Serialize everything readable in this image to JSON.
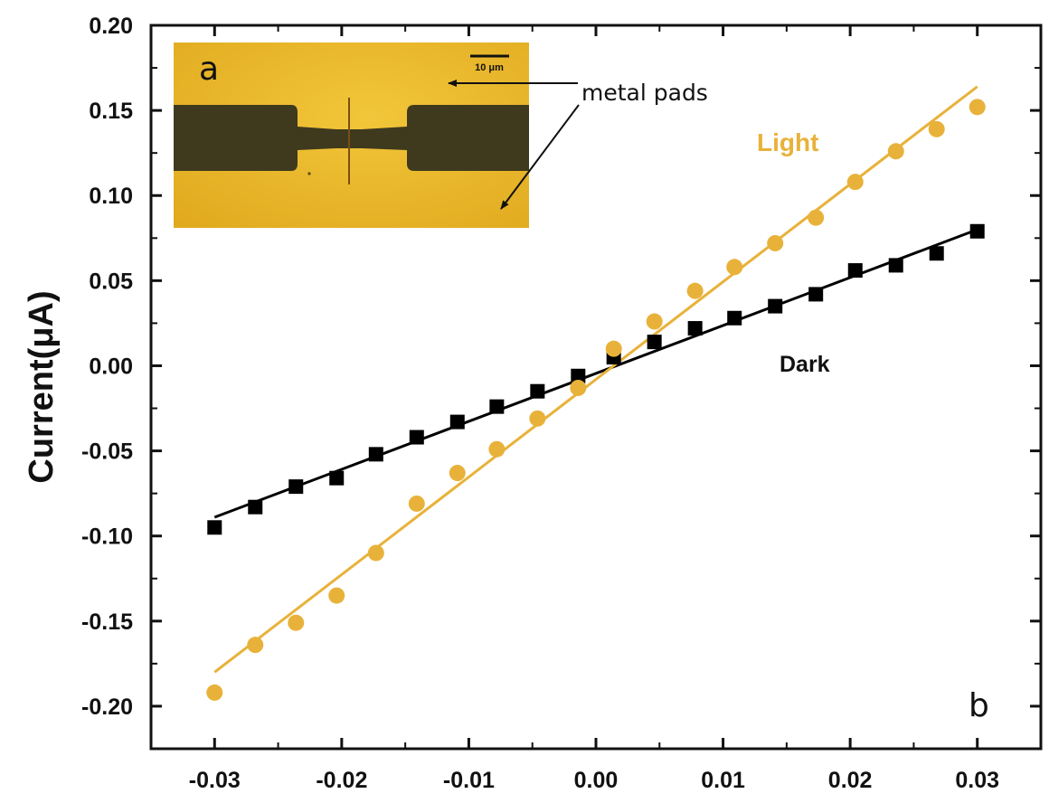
{
  "chart_data": {
    "type": "scatter",
    "ylabel": "Current(μA)",
    "xlabel": "",
    "xlim": [
      -0.035,
      0.035
    ],
    "ylim": [
      -0.225,
      0.2
    ],
    "xticks": [
      -0.03,
      -0.02,
      -0.01,
      0.0,
      0.01,
      0.02,
      0.03
    ],
    "xtick_labels": [
      "-0.03",
      "-0.02",
      "-0.01",
      "0.00",
      "0.01",
      "0.02",
      "0.03"
    ],
    "yticks": [
      0.2,
      0.15,
      0.1,
      0.05,
      0.0,
      -0.05,
      -0.1,
      -0.15,
      -0.2
    ],
    "ytick_labels": [
      "0.20",
      "0.15",
      "0.10",
      "0.05",
      "0.00",
      "-0.05",
      "-0.10",
      "-0.15",
      "-0.20"
    ],
    "grid": false,
    "series": [
      {
        "name": "Dark",
        "color": "#000000",
        "marker": "square",
        "x": [
          -0.03,
          -0.0268,
          -0.0236,
          -0.0204,
          -0.0173,
          -0.0141,
          -0.0109,
          -0.0078,
          -0.0046,
          -0.0014,
          0.0014,
          0.0046,
          0.0078,
          0.0109,
          0.0141,
          0.0173,
          0.0204,
          0.0236,
          0.0268,
          0.03
        ],
        "y": [
          -0.095,
          -0.083,
          -0.071,
          -0.066,
          -0.052,
          -0.042,
          -0.033,
          -0.024,
          -0.015,
          -0.006,
          0.005,
          0.014,
          0.022,
          0.028,
          0.035,
          0.042,
          0.056,
          0.059,
          0.066,
          0.079
        ],
        "fit": {
          "x": [
            -0.03,
            0.03
          ],
          "y": [
            -0.089,
            0.08
          ]
        }
      },
      {
        "name": "Light",
        "color": "#E8B23A",
        "marker": "circle",
        "x": [
          -0.03,
          -0.0268,
          -0.0236,
          -0.0204,
          -0.0173,
          -0.0141,
          -0.0109,
          -0.0078,
          -0.0046,
          -0.0014,
          0.0014,
          0.0046,
          0.0078,
          0.0109,
          0.0141,
          0.0173,
          0.0204,
          0.0236,
          0.0268,
          0.03
        ],
        "y": [
          -0.192,
          -0.164,
          -0.151,
          -0.135,
          -0.11,
          -0.081,
          -0.063,
          -0.049,
          -0.031,
          -0.013,
          0.01,
          0.026,
          0.044,
          0.058,
          0.072,
          0.087,
          0.108,
          0.126,
          0.139,
          0.152
        ],
        "fit": {
          "x": [
            -0.03,
            0.03
          ],
          "y": [
            -0.18,
            0.164
          ]
        }
      }
    ],
    "annotations": {
      "panel_b": "b",
      "light_label": "Light",
      "dark_label": "Dark"
    }
  },
  "inset": {
    "panel_letter": "a",
    "scale_bar": "10 μm",
    "pads_label": "metal pads",
    "colors": {
      "gold": "#E7B52C",
      "pad_dark": "#3F3A1D"
    }
  }
}
